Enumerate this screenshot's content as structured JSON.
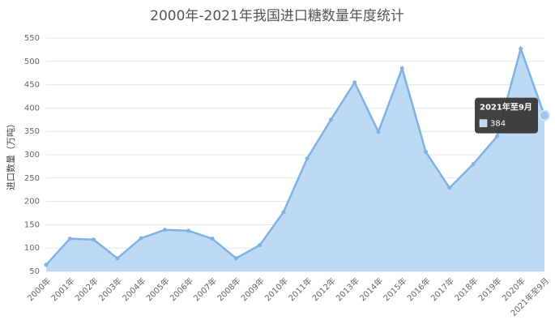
{
  "chart_data": {
    "type": "area",
    "title": "2000年-2021年我国进口糖数量年度统计",
    "y_label": "进口数量（万吨）",
    "categories": [
      "2000年",
      "2001年",
      "2002年",
      "2003年",
      "2004年",
      "2005年",
      "2006年",
      "2007年",
      "2008年",
      "2009年",
      "2010年",
      "2011年",
      "2012年",
      "2013年",
      "2014年",
      "2015年",
      "2016年",
      "2017年",
      "2018年",
      "2019年",
      "2020年",
      "2021年至9月"
    ],
    "values": [
      64,
      120,
      118,
      78,
      121,
      139,
      137,
      120,
      78,
      106,
      177,
      292,
      375,
      455,
      349,
      485,
      306,
      229,
      280,
      339,
      527,
      384
    ],
    "color": "#7eb3e6",
    "fill": "#bdd9f3",
    "ylim": [
      50,
      550
    ],
    "yticks": [
      50,
      100,
      150,
      200,
      250,
      300,
      350,
      400,
      450,
      500,
      550
    ],
    "grid": true,
    "tooltip_index": 21
  }
}
